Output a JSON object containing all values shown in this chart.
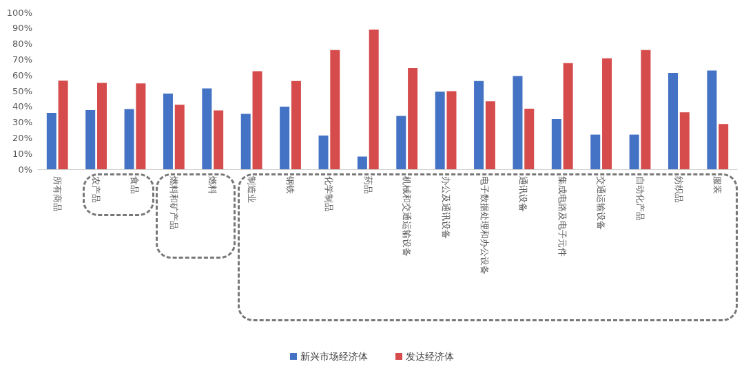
{
  "chart_data": {
    "type": "bar",
    "categories": [
      "所有商品",
      "农产品",
      "食品",
      "燃料和矿产品",
      "燃料",
      "制造业",
      "钢铁",
      "化学制品",
      "药品",
      "机械和交通运输设备",
      "办公及通讯设备",
      "电子数据处理和办公设备",
      "通讯设备",
      "集成电路及电子元件",
      "交通运输设备",
      "自动化产品",
      "纺织品",
      "服装"
    ],
    "series": [
      {
        "name": "新兴市场经济体",
        "color": "#4472c4",
        "values": [
          36.0,
          37.7,
          38.4,
          48.3,
          51.5,
          35.3,
          39.9,
          21.5,
          8.1,
          34.0,
          49.5,
          56.2,
          59.4,
          32.0,
          22.1,
          22.1,
          61.4,
          62.9
        ]
      },
      {
        "name": "发达经济体",
        "color": "#d64b4b",
        "values": [
          56.5,
          55.0,
          54.7,
          41.1,
          37.5,
          62.5,
          56.2,
          76.0,
          89.0,
          64.5,
          49.8,
          43.3,
          38.6,
          67.7,
          70.7,
          76.0,
          36.3,
          28.8
        ]
      }
    ],
    "ylim": [
      0,
      100
    ],
    "yticks": [
      {
        "value": 0,
        "label": "0%"
      },
      {
        "value": 10,
        "label": "10%"
      },
      {
        "value": 20,
        "label": "20%"
      },
      {
        "value": 30,
        "label": "30%"
      },
      {
        "value": 40,
        "label": "40%"
      },
      {
        "value": 50,
        "label": "50%"
      },
      {
        "value": 60,
        "label": "60%"
      },
      {
        "value": 70,
        "label": "70%"
      },
      {
        "value": 80,
        "label": "80%"
      },
      {
        "value": 90,
        "label": "90%"
      },
      {
        "value": 100,
        "label": "100%"
      }
    ],
    "grid": false,
    "legend": "bottom"
  }
}
